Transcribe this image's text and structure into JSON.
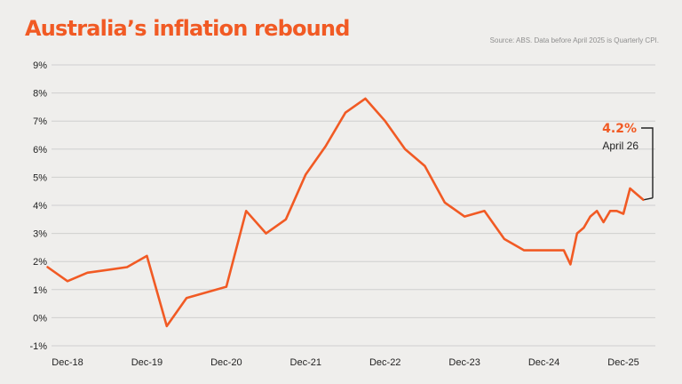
{
  "header": {
    "title": "Australia’s inflation rebound",
    "source": "Source: ABS. Data before April 2025 is Quarterly CPI."
  },
  "callout": {
    "value": "4.2%",
    "date": "April 26"
  },
  "colors": {
    "background": "#efeeec",
    "line": "#f15a24",
    "grid": "#cfcfcf",
    "text": "#222222"
  },
  "chart_data": {
    "type": "line",
    "title": "Australia’s inflation rebound",
    "xlabel": "",
    "ylabel": "",
    "ylim": [
      -1,
      9
    ],
    "grid": true,
    "y_ticks": [
      "-1%",
      "0%",
      "1%",
      "2%",
      "3%",
      "4%",
      "5%",
      "6%",
      "7%",
      "8%",
      "9%"
    ],
    "x_ticks": [
      "Dec-18",
      "Dec-19",
      "Dec-20",
      "Dec-21",
      "Dec-22",
      "Dec-23",
      "Dec-24",
      "Dec-25"
    ],
    "series": [
      {
        "values": [
          {
            "x": "2018-09",
            "y": 1.8
          },
          {
            "x": "2018-12",
            "y": 1.3
          },
          {
            "x": "2019-03",
            "y": 1.6
          },
          {
            "x": "2019-09",
            "y": 1.8
          },
          {
            "x": "2019-12",
            "y": 2.2
          },
          {
            "x": "2020-03",
            "y": -0.3
          },
          {
            "x": "2020-06",
            "y": 0.7
          },
          {
            "x": "2020-12",
            "y": 1.1
          },
          {
            "x": "2021-03",
            "y": 3.8
          },
          {
            "x": "2021-06",
            "y": 3.0
          },
          {
            "x": "2021-09",
            "y": 3.5
          },
          {
            "x": "2021-12",
            "y": 5.1
          },
          {
            "x": "2022-03",
            "y": 6.1
          },
          {
            "x": "2022-06",
            "y": 7.3
          },
          {
            "x": "2022-09",
            "y": 7.8
          },
          {
            "x": "2022-12",
            "y": 7.0
          },
          {
            "x": "2023-03",
            "y": 6.0
          },
          {
            "x": "2023-06",
            "y": 5.4
          },
          {
            "x": "2023-09",
            "y": 4.1
          },
          {
            "x": "2023-12",
            "y": 3.6
          },
          {
            "x": "2024-03",
            "y": 3.8
          },
          {
            "x": "2024-06",
            "y": 2.8
          },
          {
            "x": "2024-09",
            "y": 2.4
          },
          {
            "x": "2024-12",
            "y": 2.4
          },
          {
            "x": "2025-03",
            "y": 2.4
          },
          {
            "x": "2025-04",
            "y": 1.9
          },
          {
            "x": "2025-05",
            "y": 3.0
          },
          {
            "x": "2025-06",
            "y": 3.2
          },
          {
            "x": "2025-07",
            "y": 3.6
          },
          {
            "x": "2025-08",
            "y": 3.8
          },
          {
            "x": "2025-09",
            "y": 3.4
          },
          {
            "x": "2025-10",
            "y": 3.8
          },
          {
            "x": "2025-11",
            "y": 3.8
          },
          {
            "x": "2025-12",
            "y": 3.7
          },
          {
            "x": "2026-01",
            "y": 4.6
          },
          {
            "x": "2026-02",
            "y": 4.4
          },
          {
            "x": "2026-03",
            "y": 4.2
          }
        ]
      }
    ]
  }
}
